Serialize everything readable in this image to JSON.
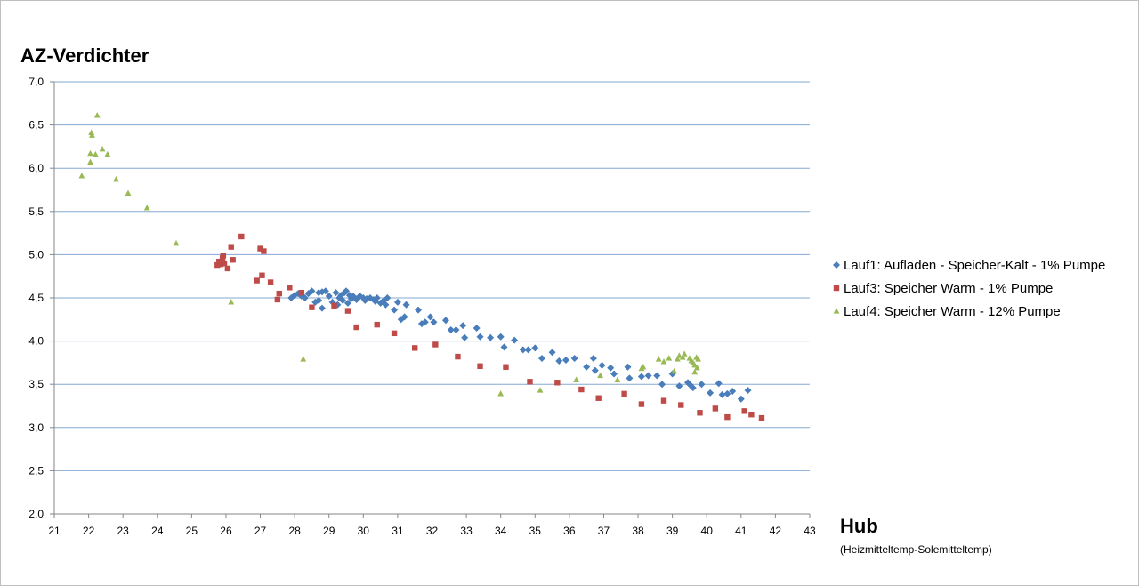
{
  "chart_data": {
    "type": "scatter",
    "title": "",
    "ylabel": "AZ-Verdichter",
    "xlabel": "Hub",
    "xlabel_sub": "(Heizmitteltemp-Solemitteltemp)",
    "xlim": [
      21,
      43
    ],
    "ylim": [
      2.0,
      7.0
    ],
    "xticks": [
      "21",
      "22",
      "23",
      "24",
      "25",
      "26",
      "27",
      "28",
      "29",
      "30",
      "31",
      "32",
      "33",
      "34",
      "35",
      "36",
      "37",
      "38",
      "39",
      "40",
      "41",
      "42",
      "43"
    ],
    "yticks": [
      "2,0",
      "2,5",
      "3,0",
      "3,5",
      "4,0",
      "4,5",
      "5,0",
      "5,5",
      "6,0",
      "6,5",
      "7,0"
    ],
    "grid": "horizontal",
    "legend_position": "right",
    "series": [
      {
        "name": "Lauf1: Aufladen - Speicher-Kalt - 1% Pumpe",
        "color": "#4a7ebb",
        "marker": "diamond",
        "points": [
          [
            27.9,
            4.5
          ],
          [
            28.0,
            4.53
          ],
          [
            28.1,
            4.55
          ],
          [
            28.2,
            4.52
          ],
          [
            28.3,
            4.5
          ],
          [
            28.4,
            4.55
          ],
          [
            28.5,
            4.58
          ],
          [
            28.6,
            4.45
          ],
          [
            28.7,
            4.47
          ],
          [
            28.7,
            4.56
          ],
          [
            28.8,
            4.38
          ],
          [
            28.8,
            4.57
          ],
          [
            28.9,
            4.58
          ],
          [
            29.0,
            4.52
          ],
          [
            29.1,
            4.45
          ],
          [
            29.2,
            4.56
          ],
          [
            29.25,
            4.42
          ],
          [
            29.3,
            4.5
          ],
          [
            29.35,
            4.53
          ],
          [
            29.4,
            4.47
          ],
          [
            29.45,
            4.56
          ],
          [
            29.5,
            4.58
          ],
          [
            29.55,
            4.44
          ],
          [
            29.6,
            4.53
          ],
          [
            29.65,
            4.49
          ],
          [
            29.7,
            4.52
          ],
          [
            29.8,
            4.48
          ],
          [
            29.85,
            4.5
          ],
          [
            29.9,
            4.52
          ],
          [
            30.0,
            4.5
          ],
          [
            30.05,
            4.47
          ],
          [
            30.1,
            4.49
          ],
          [
            30.2,
            4.5
          ],
          [
            30.3,
            4.48
          ],
          [
            30.35,
            4.46
          ],
          [
            30.4,
            4.5
          ],
          [
            30.5,
            4.44
          ],
          [
            30.6,
            4.47
          ],
          [
            30.7,
            4.5
          ],
          [
            30.65,
            4.42
          ],
          [
            30.9,
            4.36
          ],
          [
            31.0,
            4.45
          ],
          [
            31.1,
            4.25
          ],
          [
            31.2,
            4.28
          ],
          [
            31.25,
            4.42
          ],
          [
            31.6,
            4.36
          ],
          [
            31.7,
            4.2
          ],
          [
            31.8,
            4.22
          ],
          [
            31.95,
            4.28
          ],
          [
            32.05,
            4.22
          ],
          [
            32.4,
            4.24
          ],
          [
            32.55,
            4.13
          ],
          [
            32.7,
            4.13
          ],
          [
            32.9,
            4.18
          ],
          [
            32.95,
            4.04
          ],
          [
            33.3,
            4.15
          ],
          [
            33.4,
            4.05
          ],
          [
            33.7,
            4.04
          ],
          [
            34.0,
            4.05
          ],
          [
            34.1,
            3.93
          ],
          [
            34.4,
            4.01
          ],
          [
            34.65,
            3.9
          ],
          [
            34.8,
            3.9
          ],
          [
            35.0,
            3.92
          ],
          [
            35.2,
            3.8
          ],
          [
            35.5,
            3.87
          ],
          [
            35.7,
            3.77
          ],
          [
            35.9,
            3.78
          ],
          [
            36.15,
            3.8
          ],
          [
            36.5,
            3.7
          ],
          [
            36.7,
            3.8
          ],
          [
            36.75,
            3.66
          ],
          [
            36.95,
            3.72
          ],
          [
            37.2,
            3.69
          ],
          [
            37.3,
            3.62
          ],
          [
            37.7,
            3.7
          ],
          [
            37.75,
            3.57
          ],
          [
            38.1,
            3.59
          ],
          [
            38.3,
            3.6
          ],
          [
            38.55,
            3.6
          ],
          [
            38.7,
            3.5
          ],
          [
            39.0,
            3.62
          ],
          [
            39.2,
            3.48
          ],
          [
            39.45,
            3.52
          ],
          [
            39.5,
            3.5
          ],
          [
            39.6,
            3.46
          ],
          [
            39.85,
            3.5
          ],
          [
            40.1,
            3.4
          ],
          [
            40.35,
            3.51
          ],
          [
            40.45,
            3.38
          ],
          [
            40.6,
            3.39
          ],
          [
            40.75,
            3.42
          ],
          [
            41.0,
            3.33
          ],
          [
            41.2,
            3.43
          ]
        ]
      },
      {
        "name": "Lauf3: Speicher Warm - 1% Pumpe",
        "color": "#be4b48",
        "marker": "square",
        "points": [
          [
            25.75,
            4.88
          ],
          [
            25.8,
            4.92
          ],
          [
            25.85,
            4.89
          ],
          [
            25.9,
            4.96
          ],
          [
            25.92,
            4.99
          ],
          [
            25.95,
            4.9
          ],
          [
            26.05,
            4.84
          ],
          [
            26.15,
            5.09
          ],
          [
            26.2,
            4.94
          ],
          [
            26.45,
            5.21
          ],
          [
            26.9,
            4.7
          ],
          [
            27.0,
            5.07
          ],
          [
            27.05,
            4.76
          ],
          [
            27.1,
            5.04
          ],
          [
            27.3,
            4.68
          ],
          [
            27.5,
            4.48
          ],
          [
            27.55,
            4.55
          ],
          [
            27.85,
            4.62
          ],
          [
            28.2,
            4.56
          ],
          [
            28.5,
            4.39
          ],
          [
            29.15,
            4.41
          ],
          [
            29.55,
            4.35
          ],
          [
            29.8,
            4.16
          ],
          [
            30.4,
            4.19
          ],
          [
            30.9,
            4.09
          ],
          [
            31.5,
            3.92
          ],
          [
            32.1,
            3.96
          ],
          [
            32.75,
            3.82
          ],
          [
            33.4,
            3.71
          ],
          [
            34.15,
            3.7
          ],
          [
            34.85,
            3.53
          ],
          [
            35.65,
            3.52
          ],
          [
            36.35,
            3.44
          ],
          [
            36.85,
            3.34
          ],
          [
            37.6,
            3.39
          ],
          [
            38.1,
            3.27
          ],
          [
            38.75,
            3.31
          ],
          [
            39.25,
            3.26
          ],
          [
            39.8,
            3.17
          ],
          [
            40.25,
            3.22
          ],
          [
            40.6,
            3.12
          ],
          [
            41.1,
            3.19
          ],
          [
            41.3,
            3.15
          ],
          [
            41.6,
            3.11
          ]
        ]
      },
      {
        "name": "Lauf4: Speicher Warm - 12% Pumpe",
        "color": "#98b954",
        "marker": "triangle",
        "points": [
          [
            21.8,
            5.91
          ],
          [
            22.05,
            6.07
          ],
          [
            22.05,
            6.17
          ],
          [
            22.08,
            6.41
          ],
          [
            22.1,
            6.38
          ],
          [
            22.2,
            6.16
          ],
          [
            22.25,
            6.61
          ],
          [
            22.4,
            6.22
          ],
          [
            22.55,
            6.16
          ],
          [
            22.8,
            5.87
          ],
          [
            23.15,
            5.71
          ],
          [
            23.7,
            5.54
          ],
          [
            24.55,
            5.13
          ],
          [
            26.15,
            4.45
          ],
          [
            28.25,
            3.79
          ],
          [
            34.0,
            3.39
          ],
          [
            35.15,
            3.43
          ],
          [
            36.2,
            3.55
          ],
          [
            36.9,
            3.6
          ],
          [
            37.4,
            3.55
          ],
          [
            38.1,
            3.68
          ],
          [
            38.15,
            3.7
          ],
          [
            38.6,
            3.79
          ],
          [
            38.75,
            3.76
          ],
          [
            38.9,
            3.8
          ],
          [
            39.05,
            3.65
          ],
          [
            39.15,
            3.79
          ],
          [
            39.2,
            3.83
          ],
          [
            39.3,
            3.81
          ],
          [
            39.35,
            3.85
          ],
          [
            39.5,
            3.8
          ],
          [
            39.55,
            3.77
          ],
          [
            39.6,
            3.75
          ],
          [
            39.65,
            3.72
          ],
          [
            39.65,
            3.64
          ],
          [
            39.7,
            3.81
          ],
          [
            39.72,
            3.69
          ],
          [
            39.75,
            3.79
          ]
        ]
      }
    ]
  }
}
